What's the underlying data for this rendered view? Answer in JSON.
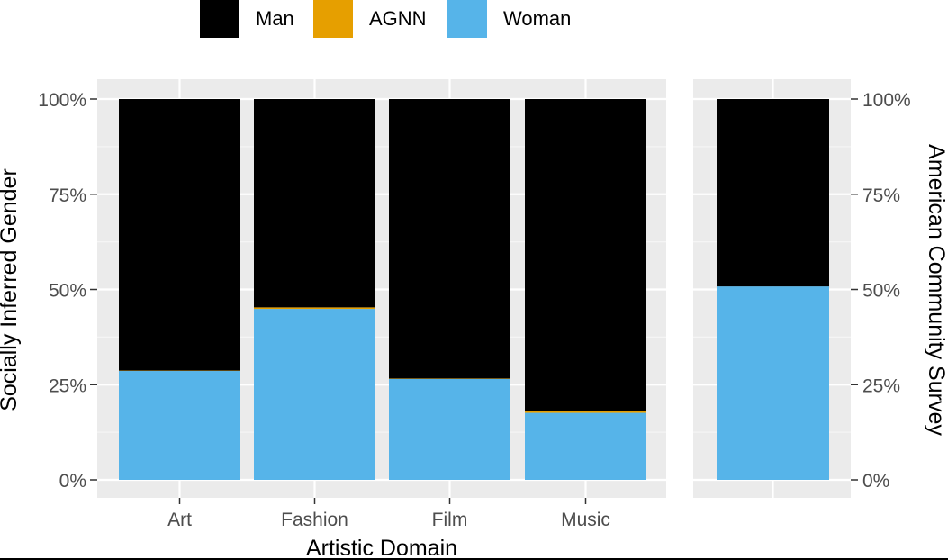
{
  "chart_data": {
    "type": "bar",
    "stacked": true,
    "normalized": true,
    "legend": {
      "placement": "top",
      "entries": [
        {
          "name": "Man",
          "color": "#000000"
        },
        {
          "name": "AGNN",
          "color": "#E69F00"
        },
        {
          "name": "Woman",
          "color": "#56B4E9"
        }
      ]
    },
    "panels": [
      {
        "categories": [
          "Art",
          "Fashion",
          "Film",
          "Music"
        ],
        "series": [
          {
            "name": "Woman",
            "values": [
              28.6,
              44.9,
              26.5,
              17.6
            ]
          },
          {
            "name": "AGNN",
            "values": [
              0.1,
              0.4,
              0.1,
              0.4
            ]
          },
          {
            "name": "Man",
            "values": [
              71.3,
              54.7,
              73.4,
              82.0
            ]
          }
        ],
        "xlabel": "Artistic Domain",
        "ylabel": "Socially Inferred Gender",
        "yticks": [
          "0%",
          "25%",
          "50%",
          "75%",
          "100%"
        ],
        "ylim": [
          0,
          100
        ]
      },
      {
        "categories": [
          ""
        ],
        "series": [
          {
            "name": "Woman",
            "values": [
              50.8
            ]
          },
          {
            "name": "AGNN",
            "values": [
              0
            ]
          },
          {
            "name": "Man",
            "values": [
              49.2
            ]
          }
        ],
        "ylabel": "American Community Survey",
        "yticks": [
          "0%",
          "25%",
          "50%",
          "75%",
          "100%"
        ],
        "ylim": [
          0,
          100
        ]
      }
    ],
    "grid": true,
    "panel_background": "#EBEBEB"
  }
}
